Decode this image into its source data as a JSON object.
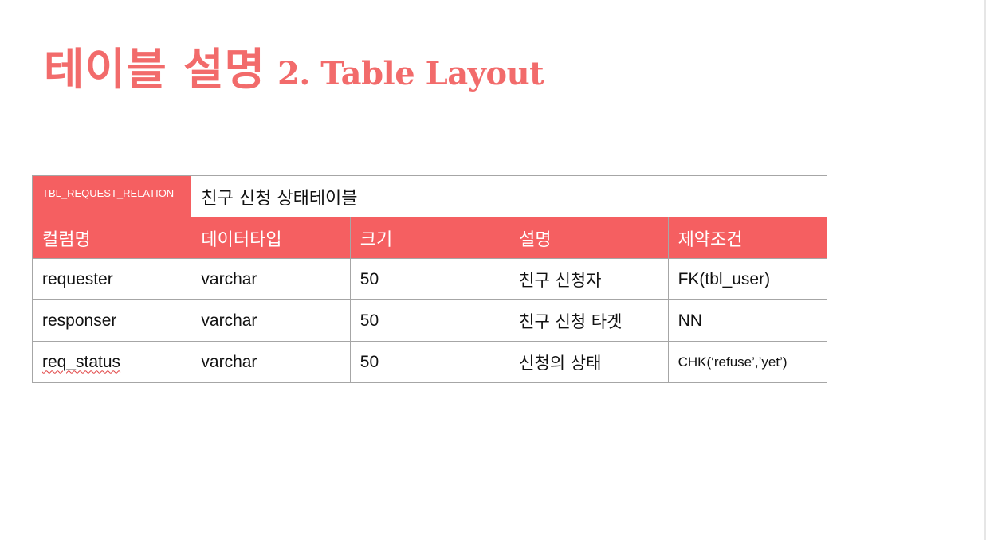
{
  "title": {
    "korean": "테이블 설명",
    "english": "2. Table Layout"
  },
  "table": {
    "name": "TBL_REQUEST_RELATION",
    "description": "친구 신청 상태테이블",
    "headers": [
      "컬럼명",
      "데이터타입",
      "크기",
      "설명",
      "제약조건"
    ],
    "rows": [
      [
        "requester",
        "varchar",
        "50",
        "친구 신청자",
        "FK(tbl_user)"
      ],
      [
        "responser",
        "varchar",
        "50",
        "친구 신청 타겟",
        "NN"
      ],
      [
        "req_status",
        "varchar",
        "50",
        "신청의 상태",
        "CHK(‘refuse’,’yet’)"
      ]
    ]
  },
  "colors": {
    "accent": "#f55f61",
    "title": "#f26b6b",
    "border": "#a6a6a6"
  }
}
